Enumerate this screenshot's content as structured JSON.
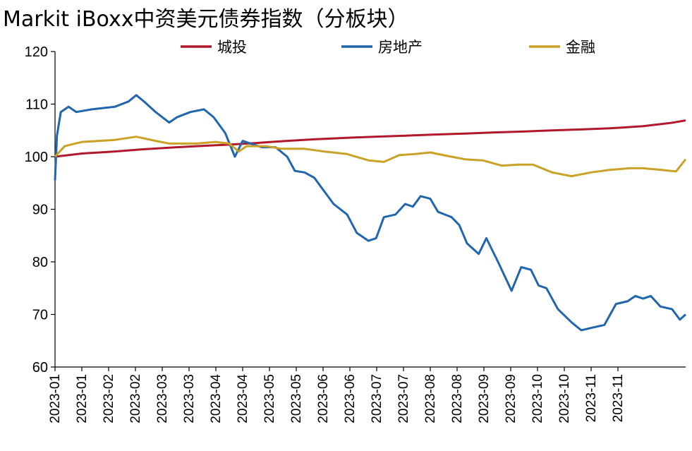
{
  "chart_data": {
    "type": "line",
    "title": "Markit iBoxx中资美元债券指数（分板块）",
    "xlabel": "",
    "ylabel": "",
    "ylim": [
      60,
      120
    ],
    "yticks": [
      60,
      70,
      80,
      90,
      100,
      110,
      120
    ],
    "x_tick_labels": [
      "2023-01",
      "2023-01",
      "2023-02",
      "2023-02",
      "2023-03",
      "2023-03",
      "2023-04",
      "2023-04",
      "2023-05",
      "2023-05",
      "2023-06",
      "2023-06",
      "2023-07",
      "2023-07",
      "2023-08",
      "2023-08",
      "2023-09",
      "2023-09",
      "2023-10",
      "2023-10",
      "2023-11",
      "2023-11"
    ],
    "xlim": [
      "2023-01-01",
      "2023-11-23"
    ],
    "grid": false,
    "legend_placement": "top",
    "series": [
      {
        "name": "城投",
        "color": "#b2182b",
        "points": [
          [
            "2023-01-01",
            100.0
          ],
          [
            "2023-01-15",
            100.6
          ],
          [
            "2023-02-01",
            101.0
          ],
          [
            "2023-02-15",
            101.4
          ],
          [
            "2023-03-01",
            101.7
          ],
          [
            "2023-03-15",
            102.0
          ],
          [
            "2023-04-01",
            102.3
          ],
          [
            "2023-04-15",
            102.6
          ],
          [
            "2023-05-01",
            103.0
          ],
          [
            "2023-05-15",
            103.3
          ],
          [
            "2023-06-01",
            103.6
          ],
          [
            "2023-06-15",
            103.8
          ],
          [
            "2023-07-01",
            104.0
          ],
          [
            "2023-07-15",
            104.2
          ],
          [
            "2023-08-01",
            104.4
          ],
          [
            "2023-08-15",
            104.6
          ],
          [
            "2023-09-01",
            104.8
          ],
          [
            "2023-09-15",
            105.0
          ],
          [
            "2023-10-01",
            105.2
          ],
          [
            "2023-10-15",
            105.4
          ],
          [
            "2023-11-01",
            105.8
          ],
          [
            "2023-11-15",
            106.4
          ],
          [
            "2023-11-23",
            106.9
          ]
        ]
      },
      {
        "name": "房地产",
        "color": "#2166ac",
        "points": [
          [
            "2023-01-01",
            95.5
          ],
          [
            "2023-01-02",
            104.0
          ],
          [
            "2023-01-04",
            108.5
          ],
          [
            "2023-01-08",
            109.5
          ],
          [
            "2023-01-12",
            108.5
          ],
          [
            "2023-01-20",
            109.0
          ],
          [
            "2023-02-01",
            109.5
          ],
          [
            "2023-02-08",
            110.5
          ],
          [
            "2023-02-12",
            111.7
          ],
          [
            "2023-02-16",
            110.5
          ],
          [
            "2023-02-22",
            108.5
          ],
          [
            "2023-03-01",
            106.5
          ],
          [
            "2023-03-05",
            107.5
          ],
          [
            "2023-03-12",
            108.5
          ],
          [
            "2023-03-19",
            109.0
          ],
          [
            "2023-03-24",
            107.5
          ],
          [
            "2023-03-30",
            104.5
          ],
          [
            "2023-04-04",
            100.0
          ],
          [
            "2023-04-08",
            103.0
          ],
          [
            "2023-04-12",
            102.5
          ],
          [
            "2023-04-18",
            101.8
          ],
          [
            "2023-04-25",
            101.8
          ],
          [
            "2023-05-01",
            100.0
          ],
          [
            "2023-05-05",
            97.3
          ],
          [
            "2023-05-10",
            97.0
          ],
          [
            "2023-05-15",
            96.0
          ],
          [
            "2023-05-20",
            93.5
          ],
          [
            "2023-05-25",
            91.0
          ],
          [
            "2023-06-01",
            89.0
          ],
          [
            "2023-06-06",
            85.5
          ],
          [
            "2023-06-12",
            84.0
          ],
          [
            "2023-06-16",
            84.5
          ],
          [
            "2023-06-20",
            88.5
          ],
          [
            "2023-06-26",
            89.0
          ],
          [
            "2023-07-01",
            91.0
          ],
          [
            "2023-07-05",
            90.5
          ],
          [
            "2023-07-09",
            92.5
          ],
          [
            "2023-07-14",
            92.0
          ],
          [
            "2023-07-18",
            89.5
          ],
          [
            "2023-07-25",
            88.5
          ],
          [
            "2023-07-29",
            87.0
          ],
          [
            "2023-08-02",
            83.5
          ],
          [
            "2023-08-08",
            81.5
          ],
          [
            "2023-08-12",
            84.5
          ],
          [
            "2023-08-18",
            80.0
          ],
          [
            "2023-08-25",
            74.5
          ],
          [
            "2023-08-30",
            79.0
          ],
          [
            "2023-09-04",
            78.5
          ],
          [
            "2023-09-08",
            75.5
          ],
          [
            "2023-09-12",
            75.0
          ],
          [
            "2023-09-18",
            71.0
          ],
          [
            "2023-09-25",
            68.5
          ],
          [
            "2023-09-30",
            67.0
          ],
          [
            "2023-10-06",
            67.5
          ],
          [
            "2023-10-12",
            68.0
          ],
          [
            "2023-10-18",
            72.0
          ],
          [
            "2023-10-24",
            72.5
          ],
          [
            "2023-10-28",
            73.5
          ],
          [
            "2023-11-01",
            73.0
          ],
          [
            "2023-11-05",
            73.5
          ],
          [
            "2023-11-10",
            71.5
          ],
          [
            "2023-11-16",
            71.0
          ],
          [
            "2023-11-20",
            69.0
          ],
          [
            "2023-11-23",
            70.0
          ]
        ]
      },
      {
        "name": "金融",
        "color": "#c9a227",
        "points": [
          [
            "2023-01-01",
            100.0
          ],
          [
            "2023-01-06",
            102.0
          ],
          [
            "2023-01-15",
            102.8
          ],
          [
            "2023-02-01",
            103.2
          ],
          [
            "2023-02-12",
            103.8
          ],
          [
            "2023-02-22",
            103.0
          ],
          [
            "2023-03-01",
            102.5
          ],
          [
            "2023-03-15",
            102.5
          ],
          [
            "2023-03-25",
            102.8
          ],
          [
            "2023-04-01",
            102.5
          ],
          [
            "2023-04-06",
            101.0
          ],
          [
            "2023-04-10",
            102.0
          ],
          [
            "2023-04-20",
            102.0
          ],
          [
            "2023-04-28",
            101.5
          ],
          [
            "2023-05-10",
            101.5
          ],
          [
            "2023-05-20",
            101.0
          ],
          [
            "2023-06-01",
            100.5
          ],
          [
            "2023-06-12",
            99.3
          ],
          [
            "2023-06-20",
            99.0
          ],
          [
            "2023-06-28",
            100.3
          ],
          [
            "2023-07-06",
            100.5
          ],
          [
            "2023-07-14",
            100.8
          ],
          [
            "2023-07-22",
            100.2
          ],
          [
            "2023-08-01",
            99.5
          ],
          [
            "2023-08-10",
            99.3
          ],
          [
            "2023-08-20",
            98.3
          ],
          [
            "2023-08-28",
            98.5
          ],
          [
            "2023-09-05",
            98.5
          ],
          [
            "2023-09-15",
            97.0
          ],
          [
            "2023-09-25",
            96.3
          ],
          [
            "2023-10-05",
            97.0
          ],
          [
            "2023-10-15",
            97.5
          ],
          [
            "2023-10-25",
            97.8
          ],
          [
            "2023-11-01",
            97.8
          ],
          [
            "2023-11-10",
            97.5
          ],
          [
            "2023-11-18",
            97.2
          ],
          [
            "2023-11-23",
            99.5
          ]
        ]
      }
    ]
  }
}
